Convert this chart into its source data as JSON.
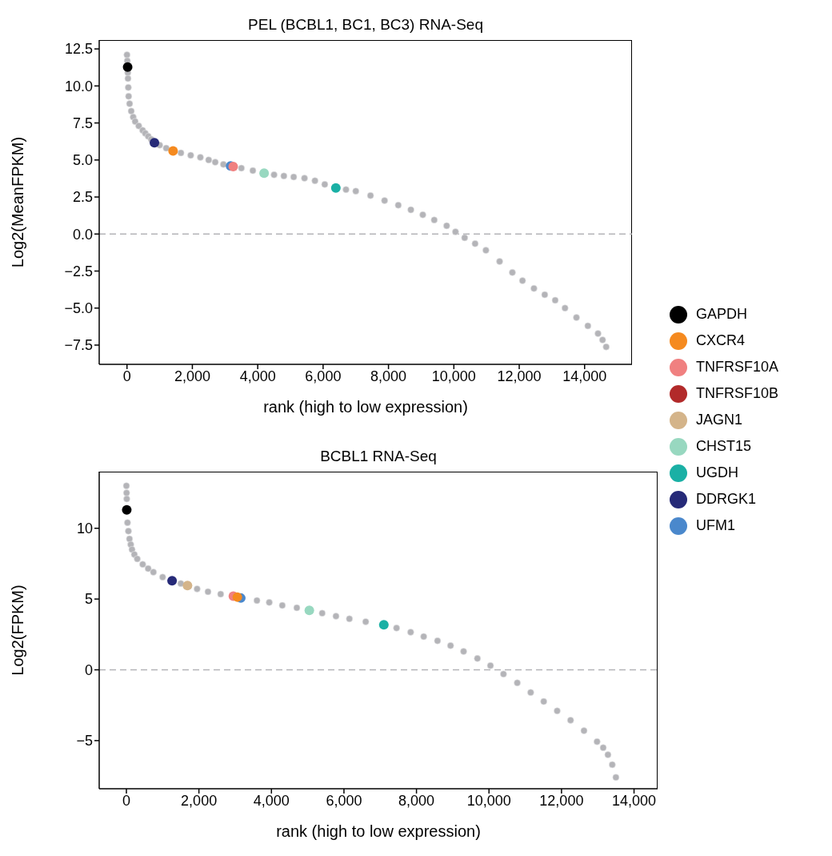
{
  "chart_data": [
    {
      "type": "scatter",
      "title": "PEL (BCBL1, BC1, BC3) RNA-Seq",
      "xlabel": "rank (high to low expression)",
      "ylabel": "Log2(MeanFPKM)",
      "marker": "circle",
      "legend": "right",
      "grid": false,
      "xlim": [
        -850,
        15450
      ],
      "xticks": [
        {
          "value": 0,
          "label": "0"
        },
        {
          "value": 2000,
          "label": "2,000"
        },
        {
          "value": 4000,
          "label": "4,000"
        },
        {
          "value": 6000,
          "label": "6,000"
        },
        {
          "value": 8000,
          "label": "8,000"
        },
        {
          "value": 10000,
          "label": "10,000"
        },
        {
          "value": 12000,
          "label": "12,000"
        },
        {
          "value": 14000,
          "label": "14,000"
        }
      ],
      "ylim": [
        -8.8,
        13.1
      ],
      "yticks": [
        {
          "value": -7.5,
          "label": "−7.5"
        },
        {
          "value": -5,
          "label": "−5.0"
        },
        {
          "value": -2.5,
          "label": "−2.5"
        },
        {
          "value": 0,
          "label": "0.0"
        },
        {
          "value": 2.5,
          "label": "2.5"
        },
        {
          "value": 5,
          "label": "5.0"
        },
        {
          "value": 7.5,
          "label": "7.5"
        },
        {
          "value": 10,
          "label": "10.0"
        },
        {
          "value": 12.5,
          "label": "12.5"
        }
      ],
      "ref_lines": [
        {
          "axis": "y",
          "value": 0,
          "color": "#b4b4b8",
          "line_style": "dashed"
        }
      ],
      "series": [
        {
          "color": "#b4b4b8",
          "x": [
            0,
            10,
            25,
            30,
            40,
            50,
            80,
            130,
            190,
            250,
            360,
            480,
            560,
            650,
            740,
            1000,
            1200,
            1650,
            1950,
            2245,
            2500,
            2700,
            2950,
            3500,
            3850,
            4500,
            4800,
            5100,
            5430,
            5750,
            6050,
            6700,
            7000,
            7450,
            7880,
            8300,
            8685,
            9050,
            9400,
            9780,
            10050,
            10330,
            10650,
            10980,
            11400,
            11790,
            12100,
            12450,
            12780,
            13100,
            13400,
            13750,
            14100,
            14410,
            14550,
            14660
          ],
          "values": [
            12.1,
            11.7,
            10.9,
            10.5,
            9.9,
            9.3,
            8.8,
            8.3,
            7.9,
            7.6,
            7.3,
            7.0,
            6.8,
            6.6,
            6.4,
            6.0,
            5.8,
            5.48,
            5.32,
            5.18,
            5.0,
            4.85,
            4.7,
            4.45,
            4.28,
            4.0,
            3.92,
            3.85,
            3.77,
            3.6,
            3.35,
            3.0,
            2.9,
            2.6,
            2.26,
            1.95,
            1.63,
            1.3,
            0.95,
            0.56,
            0.15,
            -0.25,
            -0.65,
            -1.1,
            -1.85,
            -2.6,
            -3.15,
            -3.67,
            -4.1,
            -4.47,
            -5.0,
            -5.64,
            -6.2,
            -6.72,
            -7.15,
            -7.62
          ]
        },
        {
          "name": "GAPDH",
          "color": "#000000",
          "x": [
            20
          ],
          "values": [
            11.28
          ]
        },
        {
          "name": "CXCR4",
          "color": "#f58a1f",
          "x": [
            1410
          ],
          "values": [
            5.61
          ]
        },
        {
          "name": "TNFRSF10A",
          "color": "#f08080",
          "x": [
            3250
          ],
          "values": [
            4.55
          ]
        },
        {
          "name": "TNFRSF10B",
          "color": "#b22a2a",
          "x": [
            null
          ],
          "values": [
            null
          ]
        },
        {
          "name": "JAGN1",
          "color": "#d4b48a",
          "x": [
            null
          ],
          "values": [
            null
          ]
        },
        {
          "name": "CHST15",
          "color": "#98d8c0",
          "x": [
            4195
          ],
          "values": [
            4.11
          ]
        },
        {
          "name": "UGDH",
          "color": "#1ab0a5",
          "x": [
            6390
          ],
          "values": [
            3.11
          ]
        },
        {
          "name": "DDRGK1",
          "color": "#262a78",
          "x": [
            840
          ],
          "values": [
            6.16
          ]
        },
        {
          "name": "UFM1",
          "color": "#4a88cc",
          "x": [
            3170
          ],
          "values": [
            4.6
          ]
        }
      ]
    },
    {
      "type": "scatter",
      "title": "BCBL1 RNA-Seq",
      "xlabel": "rank (high to low expression)",
      "ylabel": "Log2(FPKM)",
      "marker": "circle",
      "grid": false,
      "xlim": [
        -750,
        14650
      ],
      "xticks": [
        {
          "value": 0,
          "label": "0"
        },
        {
          "value": 2000,
          "label": "2,000"
        },
        {
          "value": 4000,
          "label": "4,000"
        },
        {
          "value": 6000,
          "label": "6,000"
        },
        {
          "value": 8000,
          "label": "8,000"
        },
        {
          "value": 10000,
          "label": "10,000"
        },
        {
          "value": 12000,
          "label": "12,000"
        },
        {
          "value": 14000,
          "label": "14,000"
        }
      ],
      "ylim": [
        -8.4,
        14
      ],
      "yticks": [
        {
          "value": -5,
          "label": "−5"
        },
        0,
        5,
        10
      ],
      "ref_lines": [
        {
          "axis": "y",
          "value": 0,
          "color": "#b4b4b8",
          "line_style": "dashed"
        }
      ],
      "series": [
        {
          "color": "#b4b4b8",
          "x": [
            0,
            5,
            10,
            30,
            55,
            85,
            120,
            155,
            220,
            300,
            450,
            600,
            745,
            1000,
            1500,
            1950,
            2250,
            2600,
            3600,
            3940,
            4300,
            4700,
            5400,
            5780,
            6150,
            6600,
            7450,
            7840,
            8200,
            8580,
            8940,
            9300,
            9680,
            10040,
            10400,
            10780,
            11150,
            11510,
            11880,
            12250,
            12620,
            12980,
            13150,
            13280,
            13400,
            13500
          ],
          "values": [
            13.0,
            12.5,
            12.07,
            10.4,
            9.8,
            9.25,
            8.85,
            8.5,
            8.15,
            7.84,
            7.45,
            7.15,
            6.9,
            6.55,
            6.1,
            5.72,
            5.52,
            5.35,
            4.9,
            4.76,
            4.55,
            4.38,
            4.0,
            3.79,
            3.6,
            3.4,
            2.95,
            2.66,
            2.35,
            2.05,
            1.71,
            1.3,
            0.8,
            0.3,
            -0.3,
            -0.92,
            -1.6,
            -2.24,
            -2.9,
            -3.56,
            -4.3,
            -5.07,
            -5.5,
            -6.0,
            -6.7,
            -7.6
          ]
        },
        {
          "color": "#000000",
          "x": [
            10
          ],
          "values": [
            11.3
          ]
        },
        {
          "color": "#f58a1f",
          "x": [
            3060
          ],
          "values": [
            5.14
          ]
        },
        {
          "color": "#f08080",
          "x": [
            2950
          ],
          "values": [
            5.2
          ]
        },
        {
          "color": "#4a88cc",
          "x": [
            3155
          ],
          "values": [
            5.07
          ]
        },
        {
          "color": "#d4b48a",
          "x": [
            1685
          ],
          "values": [
            5.95
          ]
        },
        {
          "color": "#98d8c0",
          "x": [
            5045
          ],
          "values": [
            4.2
          ]
        },
        {
          "color": "#1ab0a5",
          "x": [
            7100
          ],
          "values": [
            3.18
          ]
        },
        {
          "color": "#262a78",
          "x": [
            1260
          ],
          "values": [
            6.29
          ]
        }
      ]
    }
  ]
}
